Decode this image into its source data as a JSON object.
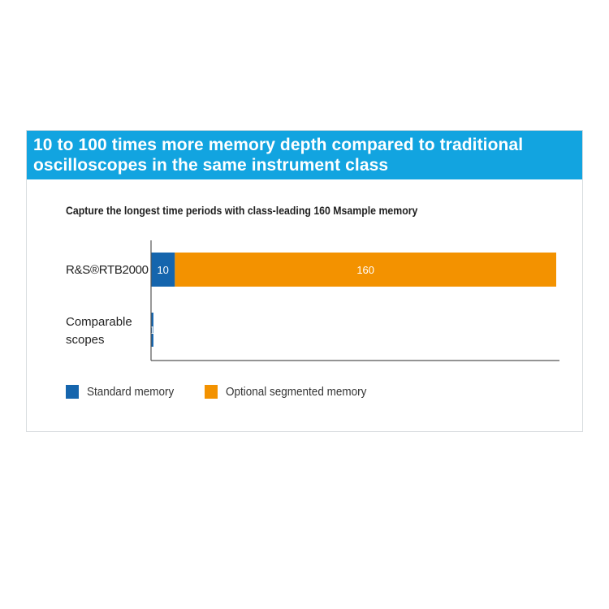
{
  "banner": {
    "line1": "10 to 100 times more memory depth compared to traditional",
    "line2": "oscilloscopes in the same instrument class"
  },
  "colors": {
    "banner": "#12a4e0",
    "standard": "#1565ad",
    "optional": "#f39200",
    "axis": "#555555"
  },
  "chart_data": {
    "type": "bar",
    "orientation": "horizontal",
    "stacked": true,
    "title": "Capture the longest time periods with class-leading 160 Msample memory",
    "categories": [
      {
        "label_lines": [
          "R&S®RTB2000"
        ]
      },
      {
        "label_lines": [
          "Comparable",
          "scopes"
        ]
      }
    ],
    "series": [
      {
        "name": "Standard memory",
        "color": "#1565ad",
        "values": [
          10,
          1
        ],
        "data_labels": [
          "10",
          "1"
        ]
      },
      {
        "name": "Optional segmented memory",
        "color": "#f39200",
        "values": [
          160,
          0
        ],
        "data_labels": [
          "160",
          ""
        ]
      }
    ],
    "xlim": [
      0,
      170
    ],
    "grid": false,
    "legend": "bottom-left"
  }
}
